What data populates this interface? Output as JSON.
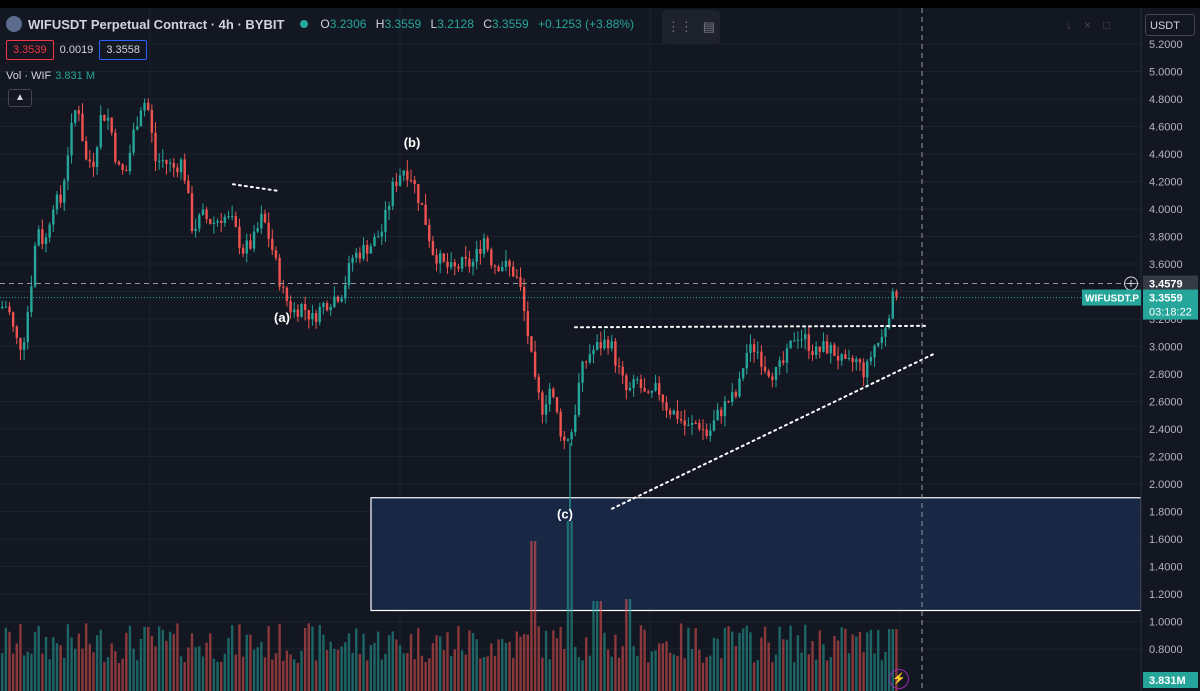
{
  "header": {
    "title": "WIFUSDT Perpetual Contract · 4h · BYBIT",
    "ohlc": [
      {
        "label": "O",
        "value": "3.2306"
      },
      {
        "label": "H",
        "value": "3.3559"
      },
      {
        "label": "L",
        "value": "3.2128"
      },
      {
        "label": "C",
        "value": "3.3559"
      }
    ],
    "change": "+0.1253 (+3.88%)"
  },
  "quote": {
    "bid": "3.3539",
    "spread": "0.0019",
    "ask": "3.3558"
  },
  "volume_legend": {
    "label": "Vol · WIF",
    "value": "3.831 M"
  },
  "toolbar": {
    "collapse_icon": "chevron-up-icon",
    "drag_icon": "drag-handle-icon",
    "image_icon": "image-icon"
  },
  "right_tools": {
    "icons": [
      "download-icon",
      "close-icon",
      "maximize-icon"
    ]
  },
  "currency_select": {
    "value": "USDT"
  },
  "colors": {
    "background": "#131722",
    "up": "#26a69a",
    "down": "#ef5350",
    "grid": "#1e222d",
    "box_fill": "#1a2a4a",
    "box_stroke": "#ffffff",
    "axis_text": "#b2b5be",
    "crosshair": "#9598a1"
  },
  "chart_data": {
    "type": "candlestick",
    "title": "WIFUSDT Perpetual Contract · 4h · BYBIT",
    "ylim": [
      0.65,
      5.3
    ],
    "y_ticks": [
      "5.2000",
      "5.0000",
      "4.8000",
      "4.6000",
      "4.4000",
      "4.2000",
      "4.0000",
      "3.8000",
      "3.6000",
      "3.4000",
      "3.2000",
      "3.0000",
      "2.8000",
      "2.6000",
      "2.4000",
      "2.2000",
      "2.0000",
      "1.8000",
      "1.6000",
      "1.4000",
      "1.2000",
      "1.0000",
      "0.8000"
    ],
    "y_tick_values": [
      5.2,
      5.0,
      4.8,
      4.6,
      4.4,
      4.2,
      4.0,
      3.8,
      3.6,
      3.4,
      3.2,
      3.0,
      2.8,
      2.6,
      2.4,
      2.2,
      2.0,
      1.8,
      1.6,
      1.4,
      1.2,
      1.0,
      0.8
    ],
    "price_waypoints": [
      [
        0,
        3.28
      ],
      [
        10,
        3.3
      ],
      [
        18,
        3.05
      ],
      [
        25,
        3.0
      ],
      [
        32,
        3.35
      ],
      [
        40,
        3.9
      ],
      [
        47,
        3.72
      ],
      [
        55,
        4.05
      ],
      [
        63,
        4.05
      ],
      [
        72,
        4.5
      ],
      [
        80,
        4.8
      ],
      [
        88,
        4.35
      ],
      [
        96,
        4.35
      ],
      [
        104,
        4.7
      ],
      [
        112,
        4.65
      ],
      [
        120,
        4.3
      ],
      [
        128,
        4.25
      ],
      [
        136,
        4.55
      ],
      [
        145,
        4.8
      ],
      [
        150,
        4.75
      ],
      [
        158,
        4.35
      ],
      [
        166,
        4.35
      ],
      [
        176,
        4.3
      ],
      [
        185,
        4.35
      ],
      [
        195,
        3.85
      ],
      [
        205,
        3.95
      ],
      [
        215,
        3.9
      ],
      [
        225,
        3.95
      ],
      [
        235,
        3.9
      ],
      [
        245,
        3.7
      ],
      [
        255,
        3.75
      ],
      [
        265,
        3.95
      ],
      [
        275,
        3.7
      ],
      [
        285,
        3.4
      ],
      [
        295,
        3.25
      ],
      [
        305,
        3.3
      ],
      [
        315,
        3.2
      ],
      [
        325,
        3.3
      ],
      [
        335,
        3.35
      ],
      [
        345,
        3.4
      ],
      [
        355,
        3.65
      ],
      [
        365,
        3.7
      ],
      [
        375,
        3.75
      ],
      [
        385,
        3.85
      ],
      [
        395,
        4.15
      ],
      [
        405,
        4.3
      ],
      [
        413,
        4.25
      ],
      [
        425,
        4.0
      ],
      [
        435,
        3.7
      ],
      [
        445,
        3.6
      ],
      [
        455,
        3.55
      ],
      [
        465,
        3.6
      ],
      [
        475,
        3.6
      ],
      [
        487,
        3.8
      ],
      [
        495,
        3.6
      ],
      [
        505,
        3.6
      ],
      [
        515,
        3.55
      ],
      [
        522,
        3.45
      ],
      [
        530,
        3.1
      ],
      [
        538,
        2.7
      ],
      [
        545,
        2.55
      ],
      [
        552,
        2.7
      ],
      [
        558,
        2.55
      ],
      [
        566,
        2.3
      ],
      [
        575,
        2.4
      ],
      [
        583,
        2.8
      ],
      [
        592,
        2.95
      ],
      [
        600,
        3.0
      ],
      [
        612,
        3.05
      ],
      [
        620,
        2.85
      ],
      [
        630,
        2.65
      ],
      [
        640,
        2.75
      ],
      [
        650,
        2.6
      ],
      [
        660,
        2.7
      ],
      [
        670,
        2.55
      ],
      [
        680,
        2.5
      ],
      [
        690,
        2.4
      ],
      [
        700,
        2.45
      ],
      [
        710,
        2.35
      ],
      [
        720,
        2.5
      ],
      [
        730,
        2.6
      ],
      [
        740,
        2.65
      ],
      [
        748,
        2.95
      ],
      [
        758,
        3.0
      ],
      [
        768,
        2.85
      ],
      [
        778,
        2.8
      ],
      [
        788,
        2.9
      ],
      [
        798,
        3.1
      ],
      [
        808,
        3.05
      ],
      [
        818,
        2.95
      ],
      [
        828,
        3.0
      ],
      [
        838,
        2.95
      ],
      [
        848,
        2.85
      ],
      [
        858,
        2.9
      ],
      [
        868,
        2.8
      ],
      [
        876,
        3.0
      ],
      [
        884,
        3.05
      ],
      [
        891,
        3.25
      ],
      [
        896,
        3.36
      ]
    ],
    "current_price": {
      "label": "WIFUSDT.P",
      "value": "3.3559",
      "countdown": "03:18:22",
      "y": 3.3559
    },
    "crosshair_price": {
      "value": "3.4579",
      "y": 3.4579
    },
    "volume_label": "3.831M",
    "annotations": [
      {
        "text": "(a)",
        "x": 282,
        "y": 3.18
      },
      {
        "text": "(b)",
        "x": 412,
        "y": 4.45
      },
      {
        "text": "(c)",
        "x": 565,
        "y": 1.75
      }
    ],
    "lines": [
      {
        "kind": "resistance",
        "x1": 575,
        "y1": 3.14,
        "x2": 925,
        "y2": 3.15
      },
      {
        "kind": "trendline",
        "x1": 612,
        "y1": 1.82,
        "x2": 935,
        "y2": 2.95
      },
      {
        "kind": "mini",
        "x1": 233,
        "y1": 4.18,
        "x2": 280,
        "y2": 4.13
      }
    ],
    "demand_zone": {
      "x1": 371,
      "x2": 1141,
      "y_top": 1.9,
      "y_bottom": 1.08
    }
  }
}
